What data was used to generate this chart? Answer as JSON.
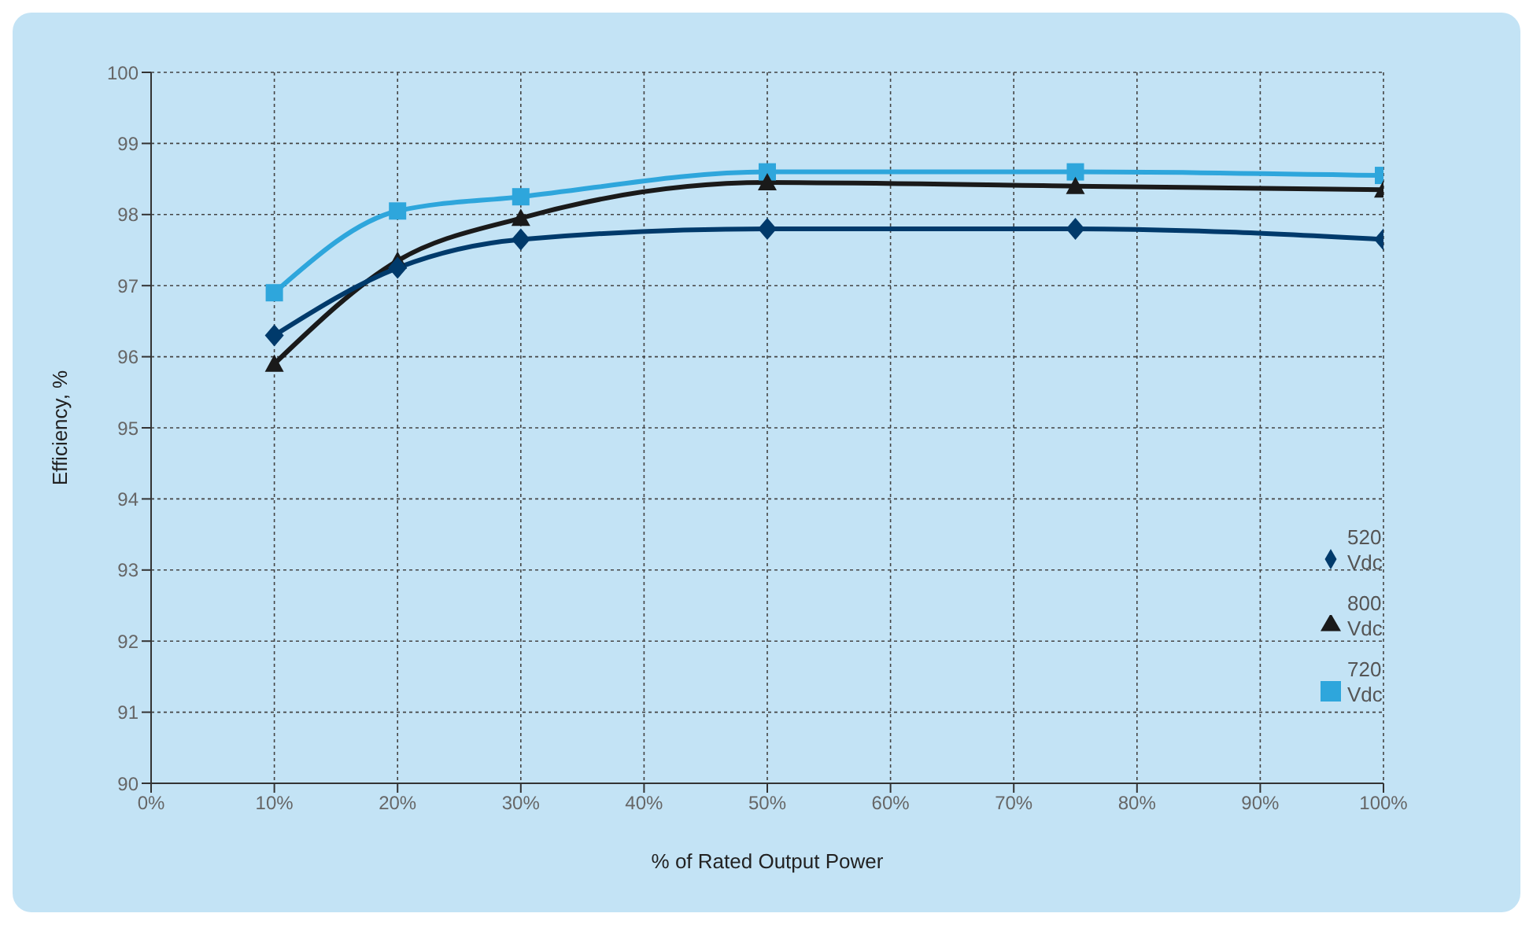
{
  "chart_data": {
    "type": "line",
    "xlabel": "% of Rated Output Power",
    "ylabel": "Efficiency, %",
    "series": [
      {
        "name": "520 Vdc",
        "color": "#003a6b",
        "marker": "diamond",
        "x": [
          10,
          20,
          30,
          50,
          75,
          100
        ],
        "values": [
          96.3,
          97.25,
          97.65,
          97.8,
          97.8,
          97.65
        ]
      },
      {
        "name": "800 Vdc",
        "color": "#1a1a1a",
        "marker": "triangle",
        "x": [
          10,
          20,
          30,
          50,
          75,
          100
        ],
        "values": [
          95.9,
          97.35,
          97.95,
          98.45,
          98.4,
          98.35
        ]
      },
      {
        "name": "720 Vdc",
        "color": "#2ea6dc",
        "marker": "square",
        "x": [
          10,
          20,
          30,
          50,
          75,
          100
        ],
        "values": [
          96.9,
          98.05,
          98.25,
          98.6,
          98.6,
          98.55
        ]
      }
    ],
    "xlim": [
      0,
      100
    ],
    "ylim": [
      90,
      100
    ],
    "xticks": [
      {
        "value": 0,
        "label": "0%"
      },
      {
        "value": 10,
        "label": "10%"
      },
      {
        "value": 20,
        "label": "20%"
      },
      {
        "value": 30,
        "label": "30%"
      },
      {
        "value": 40,
        "label": "40%"
      },
      {
        "value": 50,
        "label": "50%"
      },
      {
        "value": 60,
        "label": "60%"
      },
      {
        "value": 70,
        "label": "70%"
      },
      {
        "value": 80,
        "label": "80%"
      },
      {
        "value": 90,
        "label": "90%"
      },
      {
        "value": 100,
        "label": "100%"
      }
    ],
    "yticks": [
      90,
      91,
      92,
      93,
      94,
      95,
      96,
      97,
      98,
      99,
      100
    ],
    "grid": true,
    "legend": "bottom right",
    "line_style": "solid"
  }
}
